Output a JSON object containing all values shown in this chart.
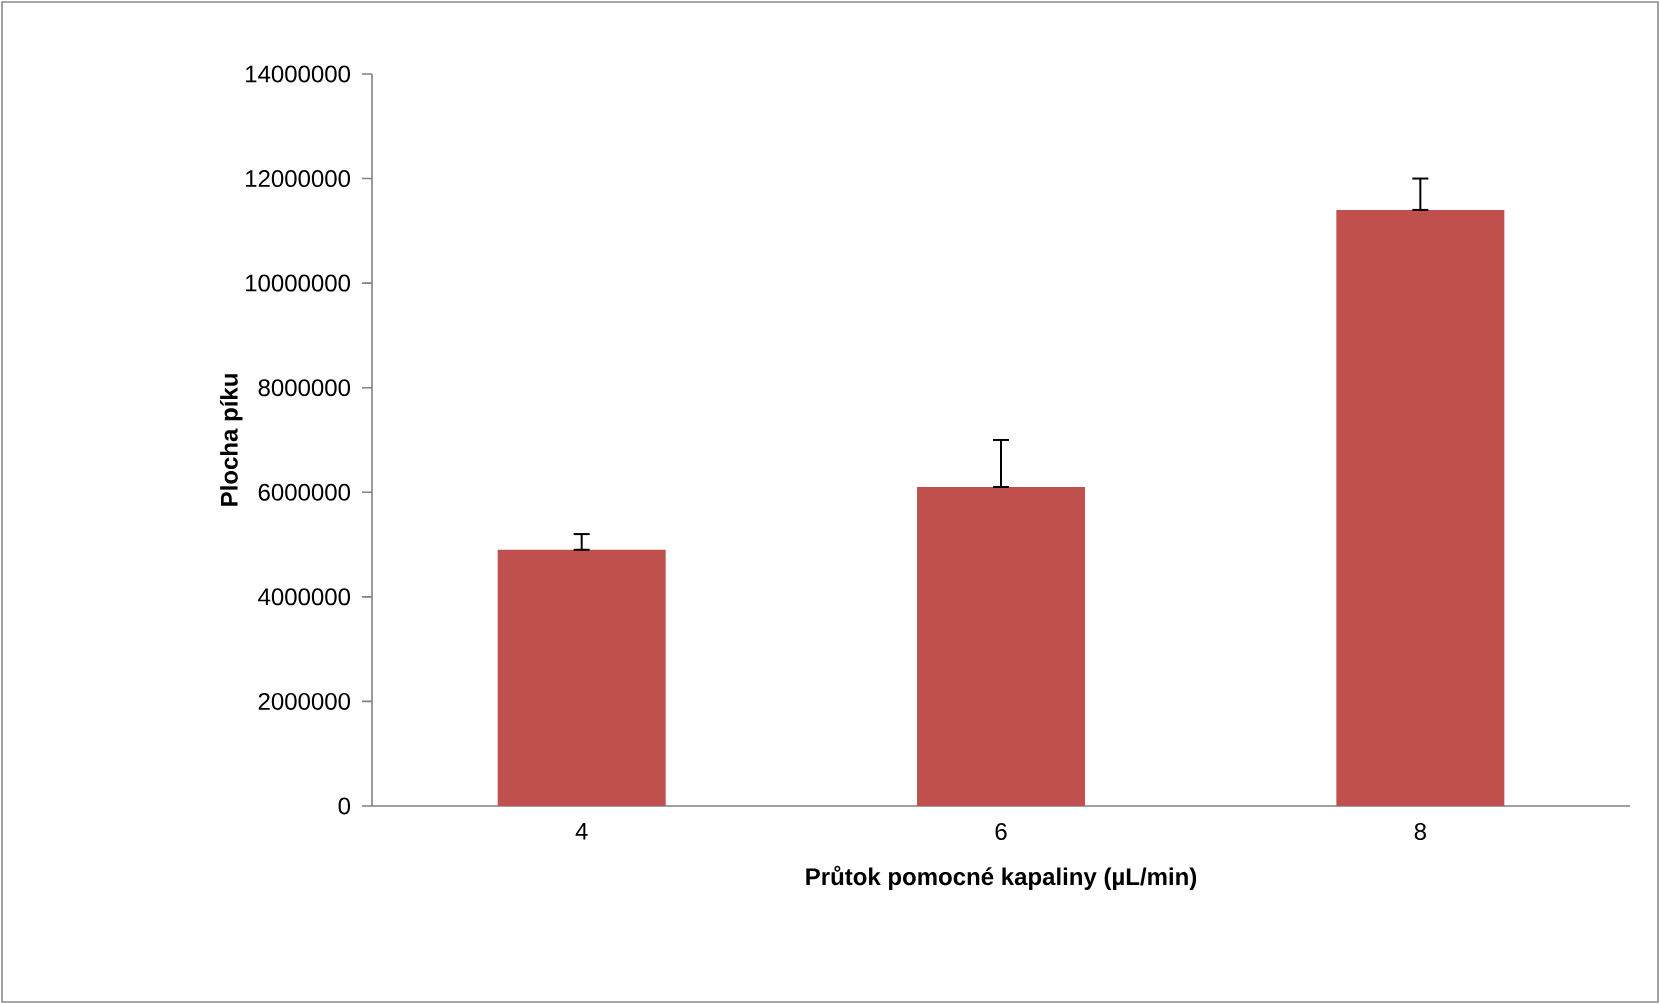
{
  "chart_data": {
    "type": "bar",
    "xlabel": "Průtok pomocné kapaliny  (µL/min)",
    "ylabel": "Plocha píku",
    "categories": [
      "4",
      "6",
      "8"
    ],
    "values": [
      4900000,
      6100000,
      11400000
    ],
    "errors": [
      [
        4900000,
        5200000
      ],
      [
        6100000,
        7000000
      ],
      [
        11400000,
        12000000
      ]
    ],
    "color": "#c0504d",
    "ylim": [
      0,
      14000000
    ],
    "yticks": [
      0,
      2000000,
      4000000,
      6000000,
      8000000,
      10000000,
      12000000,
      14000000
    ]
  }
}
